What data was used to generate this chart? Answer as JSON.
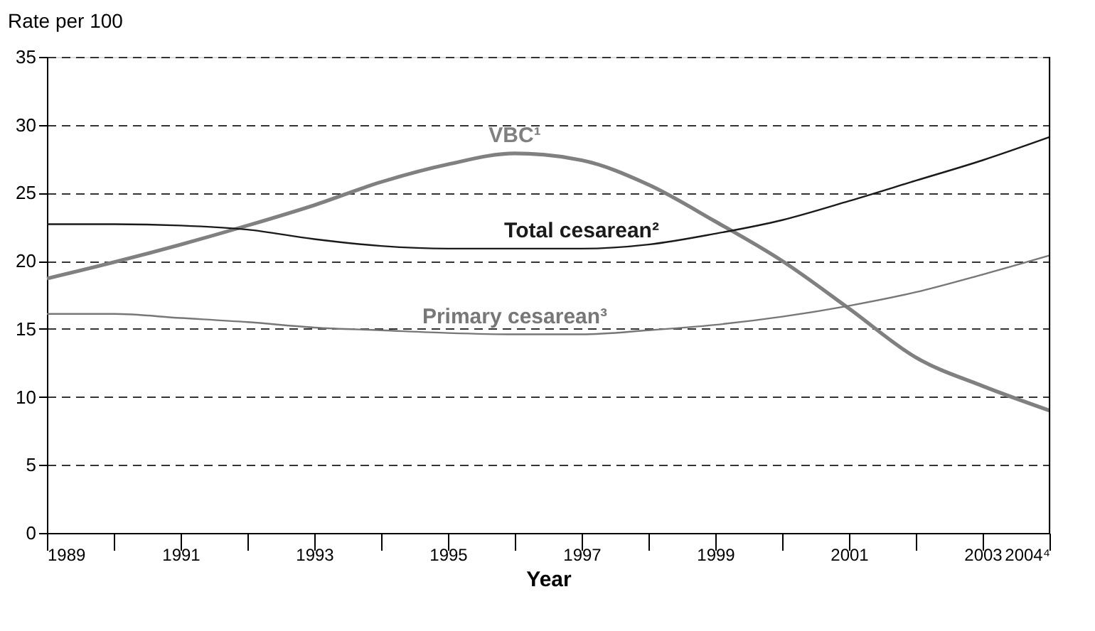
{
  "chart_data": {
    "type": "line",
    "xlabel": "Year",
    "ylabel": "Rate per 100",
    "x": [
      1989,
      1990,
      1991,
      1992,
      1993,
      1994,
      1995,
      1996,
      1997,
      1998,
      1999,
      2000,
      2001,
      2002,
      2003,
      2004
    ],
    "series": [
      {
        "name": "VBC¹",
        "color": "#808080",
        "values": [
          18.7,
          19.9,
          21.2,
          22.6,
          24.1,
          25.8,
          27.1,
          27.9,
          27.4,
          25.6,
          22.9,
          20.0,
          16.5,
          12.9,
          10.8,
          9.0
        ]
      },
      {
        "name": "Total cesarean²",
        "color": "#1a1a1a",
        "values": [
          22.7,
          22.7,
          22.6,
          22.3,
          21.6,
          21.1,
          20.9,
          20.9,
          20.9,
          21.2,
          22.0,
          23.0,
          24.4,
          25.9,
          27.4,
          29.1
        ]
      },
      {
        "name": "Primary cesarean³",
        "color": "#777777",
        "values": [
          16.1,
          16.1,
          15.8,
          15.5,
          15.1,
          14.9,
          14.7,
          14.6,
          14.6,
          14.9,
          15.3,
          15.9,
          16.7,
          17.7,
          19.0,
          20.4
        ]
      }
    ],
    "xlim": [
      1989,
      2004
    ],
    "xticks": [
      1989,
      {
        "value": 1990,
        "label": null
      },
      1991,
      {
        "value": 1992,
        "label": null
      },
      1993,
      {
        "value": 1994,
        "label": null
      },
      1995,
      {
        "value": 1996,
        "label": null
      },
      1997,
      {
        "value": 1998,
        "label": null
      },
      1999,
      {
        "value": 2000,
        "label": null
      },
      2001,
      {
        "value": 2002,
        "label": null
      },
      2003,
      {
        "value": 2004,
        "label": "2004⁴"
      }
    ],
    "ylim": [
      0,
      35
    ],
    "yticks": [
      0,
      5,
      10,
      15,
      20,
      25,
      30,
      35
    ],
    "grid": "y",
    "legend": false,
    "marker": "none",
    "line_style": "solid"
  }
}
